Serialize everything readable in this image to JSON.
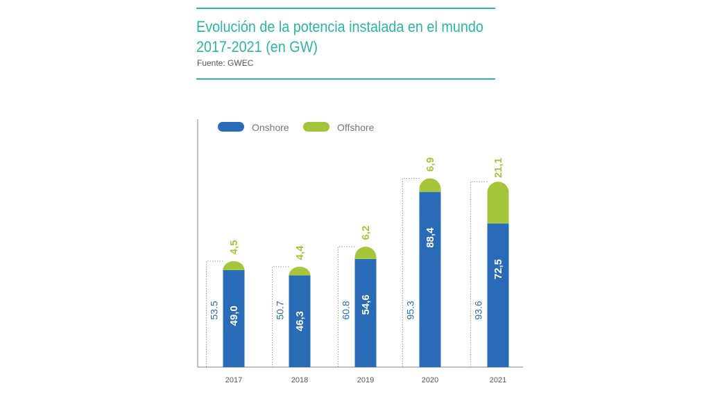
{
  "header": {
    "title_line1": "Evolución de la potencia instalada en el mundo",
    "title_line2": "2017-2021 (en GW)",
    "source": "Fuente: GWEC"
  },
  "colors": {
    "accent": "#2bb5a8",
    "onshore": "#2a6bb8",
    "offshore": "#a5c63b",
    "axis": "#9a9a9a"
  },
  "chart_data": {
    "type": "bar",
    "stacked": true,
    "categories": [
      "2017",
      "2018",
      "2019",
      "2020",
      "2021"
    ],
    "series": [
      {
        "name": "Onshore",
        "values": [
          49.0,
          46.3,
          54.6,
          88.4,
          72.5
        ],
        "labels": [
          "49,0",
          "46,3",
          "54,6",
          "88,4",
          "72,5"
        ]
      },
      {
        "name": "Offshore",
        "values": [
          4.5,
          4.4,
          6.2,
          6.9,
          21.1
        ],
        "labels": [
          "4,5",
          "4,4",
          "6,2",
          "6,9",
          "21,1"
        ]
      }
    ],
    "totals": [
      53.5,
      50.7,
      60.8,
      95.3,
      93.6
    ],
    "total_labels": [
      "53.5",
      "50.7",
      "60.8",
      "95.3",
      "93.6"
    ],
    "ylim": [
      0,
      100
    ],
    "legend_position": "top-left",
    "grid": false,
    "title": "",
    "xlabel": "",
    "ylabel": ""
  }
}
